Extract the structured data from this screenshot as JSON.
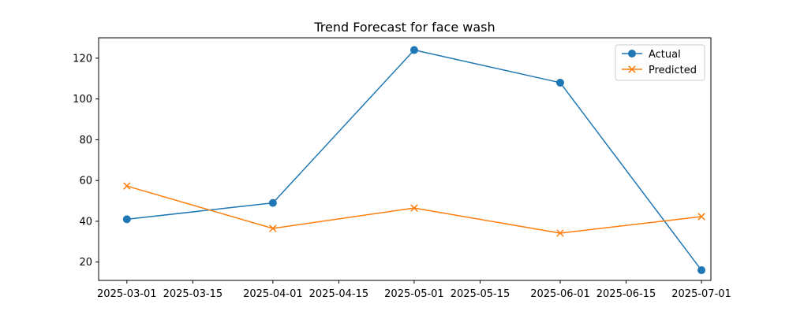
{
  "chart_data": {
    "type": "line",
    "title": "Trend Forecast for face wash",
    "xlabel": "",
    "ylabel": "",
    "x_tick_labels": [
      "2025-03-01",
      "2025-03-15",
      "2025-04-01",
      "2025-04-15",
      "2025-05-01",
      "2025-05-15",
      "2025-06-01",
      "2025-06-15",
      "2025-07-01"
    ],
    "y_tick_labels": [
      "20",
      "40",
      "60",
      "80",
      "100",
      "120"
    ],
    "ylim": [
      11,
      130
    ],
    "xlim": [
      "2025-02-23",
      "2025-07-03"
    ],
    "grid": false,
    "legend_position": "top-right",
    "series": [
      {
        "name": "Actual",
        "color": "#1f77b4",
        "marker": "circle",
        "points": [
          {
            "x": "2025-03-01",
            "y": 41
          },
          {
            "x": "2025-04-01",
            "y": 49
          },
          {
            "x": "2025-05-01",
            "y": 124
          },
          {
            "x": "2025-06-01",
            "y": 108
          },
          {
            "x": "2025-07-01",
            "y": 16
          }
        ]
      },
      {
        "name": "Predicted",
        "color": "#ff7f0e",
        "marker": "x",
        "points": [
          {
            "x": "2025-03-01",
            "y": 57.3
          },
          {
            "x": "2025-04-01",
            "y": 36.5
          },
          {
            "x": "2025-05-01",
            "y": 46.5
          },
          {
            "x": "2025-06-01",
            "y": 34.2
          },
          {
            "x": "2025-07-01",
            "y": 42.3
          }
        ]
      }
    ]
  }
}
